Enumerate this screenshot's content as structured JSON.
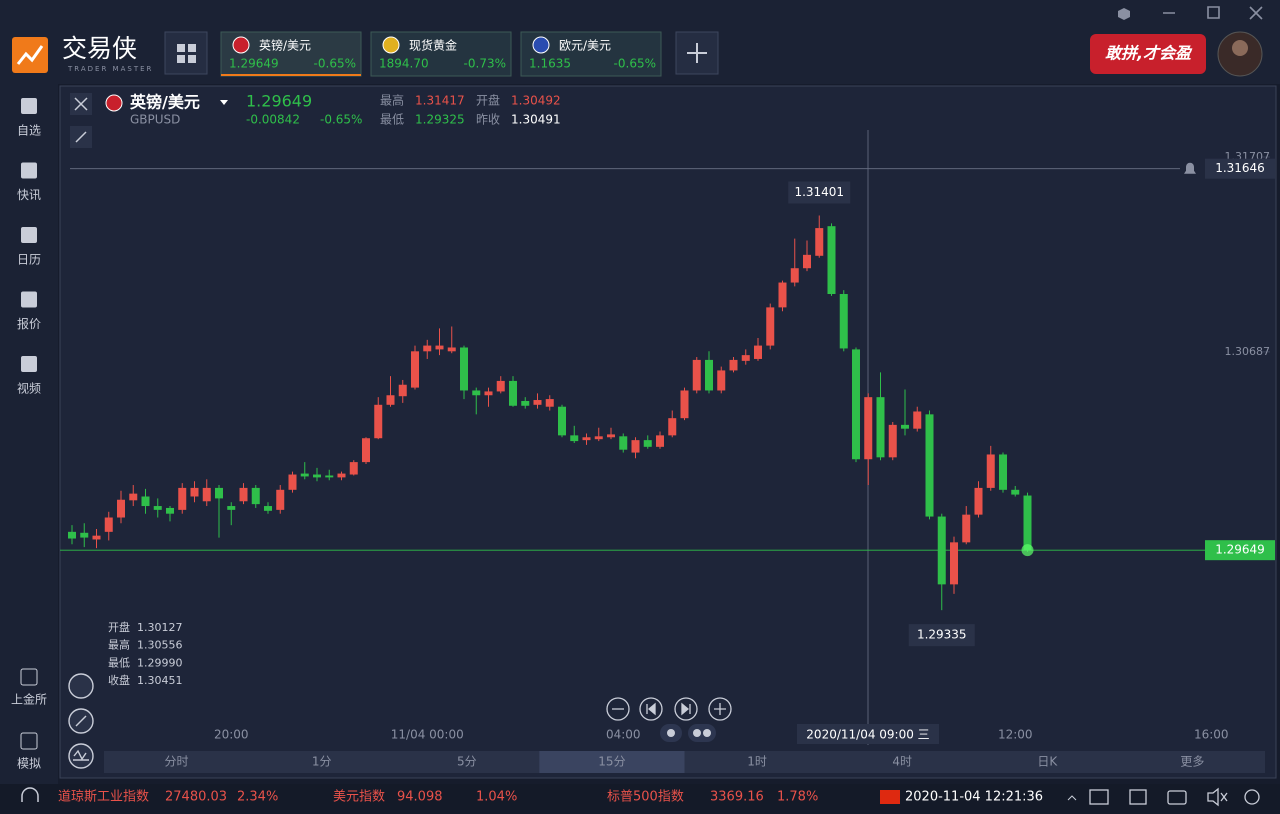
{
  "app": {
    "logo": "交易侠",
    "logo_sub": "TRADER MASTER",
    "banner": "敢拼,才会盈"
  },
  "tabs": [
    {
      "name": "英镑/美元",
      "price": "1.29649",
      "change": "-0.65%"
    },
    {
      "name": "现货黄金",
      "price": "1894.70",
      "change": "-0.73%"
    },
    {
      "name": "欧元/美元",
      "price": "1.1635",
      "change": "-0.65%"
    }
  ],
  "sidebar": [
    "自选",
    "快讯",
    "日历",
    "报价",
    "视频"
  ],
  "sidebar_bottom": [
    "上金所",
    "模拟"
  ],
  "quote": {
    "name": "英镑/美元",
    "code": "GBPUSD",
    "price": "1.29649",
    "change": "-0.00842",
    "change_pct": "-0.65%",
    "high_label": "最高",
    "high": "1.31417",
    "open_label": "开盘",
    "open": "1.30492",
    "low_label": "最低",
    "low": "1.29325",
    "prev_label": "昨收",
    "prev": "1.30491"
  },
  "ohlc_panel": [
    {
      "label": "开盘",
      "value": "1.30127"
    },
    {
      "label": "最高",
      "value": "1.30556"
    },
    {
      "label": "最低",
      "value": "1.29990"
    },
    {
      "label": "收盘",
      "value": "1.30451"
    }
  ],
  "chart_data": {
    "type": "candlestick",
    "ylim": [
      1.2876,
      1.3177
    ],
    "yticks": [
      1.31707,
      1.30687
    ],
    "up_color": "#e9524a",
    "down_color": "#2fbf4a",
    "categories": [
      null,
      null,
      null,
      null,
      null,
      null,
      null,
      null,
      null,
      null,
      null,
      null,
      null,
      "20:00",
      null,
      null,
      null,
      null,
      null,
      null,
      null,
      null,
      null,
      null,
      null,
      null,
      null,
      null,
      null,
      "11/04 00:00",
      null,
      null,
      null,
      null,
      null,
      null,
      null,
      null,
      null,
      null,
      null,
      null,
      null,
      null,
      null,
      "04:00",
      null,
      null,
      null,
      null,
      null,
      null,
      null,
      null,
      null,
      null,
      null,
      null,
      null,
      null,
      null,
      null,
      null,
      null,
      null,
      null,
      null,
      null,
      null,
      null,
      null,
      null,
      null,
      null,
      null,
      null,
      null,
      "12:00",
      null,
      null,
      null,
      null,
      null,
      null,
      null,
      null,
      null,
      null,
      null,
      null,
      null,
      null,
      null,
      "16:00"
    ],
    "open": [
      1.29745,
      1.2974,
      1.29705,
      1.29745,
      1.2982,
      1.2991,
      1.2993,
      1.2988,
      1.2987,
      1.2986,
      1.2993,
      1.29905,
      1.29975,
      1.2988,
      1.29905,
      1.29975,
      1.2988,
      1.2986,
      1.29965,
      1.3005,
      1.30045,
      1.3004,
      1.3003,
      1.30045,
      1.3011,
      1.30235,
      1.3041,
      1.30455,
      1.305,
      1.3069,
      1.307,
      1.3069,
      1.3071,
      1.30485,
      1.3046,
      1.3048,
      1.30535,
      1.3043,
      1.3041,
      1.304,
      1.304,
      1.3025,
      1.30225,
      1.3023,
      1.3024,
      1.30245,
      1.3016,
      1.30225,
      1.3019,
      1.3025,
      1.3034,
      1.30485,
      1.30645,
      1.30485,
      1.3059,
      1.3064,
      1.3065,
      1.3072,
      1.3092,
      1.3105,
      1.31125,
      1.3119,
      1.31345,
      1.3099,
      1.307,
      1.30125,
      1.3045,
      1.30135,
      1.30305,
      1.30285,
      1.3036,
      1.29825,
      1.2947,
      1.2969,
      1.29835,
      1.29975,
      1.3015,
      1.29965,
      1.29935,
      null,
      null,
      null,
      null,
      null,
      null,
      null,
      null,
      null,
      null,
      null,
      null,
      null,
      null,
      null
    ],
    "high": [
      1.2978,
      1.2979,
      1.2976,
      1.2985,
      1.2996,
      1.2999,
      1.2997,
      1.2992,
      1.2988,
      1.3,
      1.3001,
      1.3002,
      1.2999,
      1.299,
      1.3,
      1.2999,
      1.299,
      1.2999,
      1.3006,
      1.3011,
      1.3008,
      1.3007,
      1.3006,
      1.3012,
      1.3024,
      1.3045,
      1.3056,
      1.3054,
      1.3072,
      1.3075,
      1.3081,
      1.3082,
      1.3072,
      1.305,
      1.305,
      1.3056,
      1.3056,
      1.3045,
      1.3047,
      1.3046,
      1.3041,
      1.303,
      1.3026,
      1.3029,
      1.3029,
      1.3026,
      1.3024,
      1.3025,
      1.3027,
      1.3038,
      1.305,
      1.3066,
      1.3069,
      1.3061,
      1.3066,
      1.307,
      1.3076,
      1.3094,
      1.3106,
      1.3128,
      1.3127,
      1.31401,
      1.3136,
      1.3101,
      1.3071,
      1.3047,
      1.3058,
      1.3032,
      1.3049,
      1.304,
      1.3038,
      1.2984,
      1.2972,
      1.2988,
      1.3001,
      1.30195,
      1.3016,
      1.29985,
      1.2995,
      null,
      null,
      null,
      null,
      null,
      null,
      null,
      null,
      null,
      null,
      null,
      null,
      null,
      null,
      null
    ],
    "low": [
      1.2968,
      1.29665,
      1.2966,
      1.297,
      1.2979,
      1.2988,
      1.2984,
      1.2982,
      1.298,
      1.2984,
      1.299,
      1.2988,
      1.29715,
      1.2978,
      1.2989,
      1.2987,
      1.2984,
      1.2984,
      1.2995,
      1.3002,
      1.3001,
      1.30015,
      1.30015,
      1.3004,
      1.301,
      1.3023,
      1.304,
      1.3042,
      1.3049,
      1.3065,
      1.3067,
      1.3068,
      1.3044,
      1.3036,
      1.304,
      1.3047,
      1.304,
      1.3039,
      1.3039,
      1.3038,
      1.3024,
      1.3021,
      1.302,
      1.3022,
      1.3023,
      1.3016,
      1.3013,
      1.3018,
      1.3018,
      1.3024,
      1.3033,
      1.3047,
      1.3047,
      1.3047,
      1.3058,
      1.3062,
      1.3064,
      1.307,
      1.309,
      1.3103,
      1.3111,
      1.3118,
      1.3098,
      1.3069,
      1.3011,
      1.2999,
      1.3012,
      1.3012,
      1.3025,
      1.3027,
      1.2981,
      1.29335,
      1.2942,
      1.2968,
      1.2982,
      1.2996,
      1.2995,
      1.2993,
      1.2964,
      null,
      null,
      null,
      null,
      null,
      null,
      null,
      null,
      null,
      null,
      null,
      null,
      null,
      null,
      null
    ],
    "close": [
      1.2971,
      1.29715,
      1.29725,
      1.2982,
      1.29913,
      1.29945,
      1.2988,
      1.2986,
      1.2984,
      1.29975,
      1.29975,
      1.29975,
      1.2992,
      1.2986,
      1.29975,
      1.2989,
      1.29855,
      1.29965,
      1.30045,
      1.30035,
      1.3003,
      1.3003,
      1.3005,
      1.3011,
      1.30235,
      1.3041,
      1.3046,
      1.30515,
      1.3069,
      1.3072,
      1.3072,
      1.3071,
      1.30485,
      1.3046,
      1.3048,
      1.30535,
      1.30405,
      1.30405,
      1.30435,
      1.3044,
      1.3025,
      1.3022,
      1.3024,
      1.30245,
      1.30255,
      1.30175,
      1.30225,
      1.3019,
      1.3025,
      1.3034,
      1.30485,
      1.30645,
      1.30485,
      1.3059,
      1.30645,
      1.3067,
      1.3072,
      1.3092,
      1.3105,
      1.31125,
      1.31195,
      1.31335,
      1.3099,
      1.30705,
      1.30125,
      1.3045,
      1.30135,
      1.30305,
      1.30285,
      1.30375,
      1.29825,
      1.2947,
      1.2969,
      1.29835,
      1.29975,
      1.3015,
      1.29965,
      1.2994,
      1.29649,
      null,
      null,
      null,
      null,
      null,
      null,
      null,
      null,
      null,
      null,
      null,
      null,
      null,
      null,
      null
    ],
    "max_marker": 1.31401,
    "min_marker": 1.29335,
    "last_price": 1.29649,
    "alert_price": 1.31646,
    "crosshair_label": "2020/11/04 09:00 三"
  },
  "timeframes": [
    "分时",
    "1分",
    "5分",
    "15分",
    "1时",
    "4时",
    "日K",
    "更多"
  ],
  "ticker": [
    {
      "name": "道琼斯工业指数",
      "value": "27480.03",
      "change": "2.34%"
    },
    {
      "name": "美元指数",
      "value": "94.098",
      "change": "1.04%"
    },
    {
      "name": "标普500指数",
      "value": "3369.16",
      "change": "1.78%"
    }
  ],
  "clock": "2020-11-04 12:21:36"
}
